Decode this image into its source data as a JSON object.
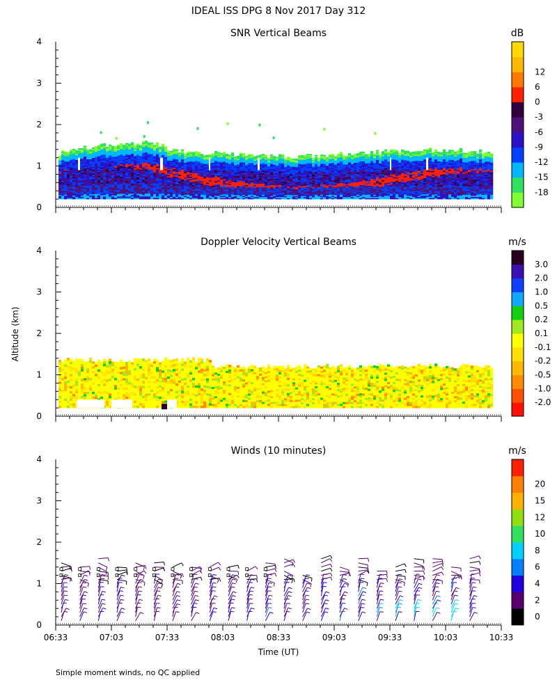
{
  "figure": {
    "title": "IDEAL ISS DPG    8 Nov 2017 Day 312",
    "ylabel": "Altitude (km)",
    "xlabel": "Time (UT)",
    "footnote": "Simple moment winds, no QC applied"
  },
  "chart_data": [
    {
      "type": "heatmap",
      "title": "SNR Vertical Beams",
      "colorbar_unit": "dB",
      "colorbar_labels": [
        "-18",
        "-15",
        "-12",
        "-9",
        "-6",
        "-3",
        "0",
        "6",
        "12"
      ],
      "colorbar_colors": [
        "#80ff30",
        "#30e060",
        "#00b8ff",
        "#0040ff",
        "#2a10c8",
        "#50107a",
        "#300040",
        "#ff2000",
        "#ff7800",
        "#ffb800",
        "#ffd800"
      ],
      "ylim": [
        0,
        4
      ],
      "yticks": [
        "0",
        "1",
        "2",
        "3",
        "4"
      ],
      "x_range": [
        "06:33",
        "10:33"
      ],
      "layers": [
        {
          "name": "weak echo top (-18 to -15 dB)",
          "alt_km": [
            0.2,
            1.6
          ]
        },
        {
          "name": "-12 dB band",
          "alt_km": [
            0.2,
            1.15
          ]
        },
        {
          "name": "-9 dB band",
          "alt_km": [
            0.25,
            1.05
          ]
        },
        {
          "name": "-6 to -3 dB core",
          "alt_km": [
            0.3,
            0.95
          ]
        },
        {
          "name": "0 dB strong layer",
          "alt_km": [
            0.4,
            1.0
          ]
        }
      ]
    },
    {
      "type": "heatmap",
      "title": "Doppler Velocity Vertical Beams",
      "colorbar_unit": "m/s",
      "colorbar_labels": [
        "-2.0",
        "-1.0",
        "-0.5",
        "-0.2",
        "-0.1",
        "0.1",
        "0.2",
        "0.5",
        "1.0",
        "2.0",
        "3.0"
      ],
      "colorbar_colors": [
        "#ff1000",
        "#ff5000",
        "#ff8c00",
        "#ffb800",
        "#ffe000",
        "#ffff00",
        "#a0e820",
        "#10d010",
        "#10a8ff",
        "#1040ff",
        "#3a10b0",
        "#280020"
      ],
      "ylim": [
        0,
        4
      ],
      "yticks": [
        "0",
        "1",
        "2",
        "3",
        "4"
      ],
      "x_range": [
        "06:33",
        "10:33"
      ],
      "dominant_range": "-0.1 to 0.1 m/s",
      "echo_top_km": 1.5
    },
    {
      "type": "scatter",
      "title": "Winds (10 minutes)",
      "colorbar_unit": "m/s",
      "colorbar_labels": [
        "0",
        "2",
        "4",
        "6",
        "8",
        "10",
        "12",
        "15",
        "20"
      ],
      "colorbar_colors": [
        "#000000",
        "#580070",
        "#2000e0",
        "#0080ff",
        "#00d0ff",
        "#30e060",
        "#90e010",
        "#ffb000",
        "#ff8000",
        "#ff2000"
      ],
      "ylim": [
        0,
        4
      ],
      "yticks": [
        "0",
        "1",
        "2",
        "3",
        "4"
      ],
      "xticks": [
        "06:33",
        "07:03",
        "07:33",
        "08:03",
        "08:33",
        "09:03",
        "09:33",
        "10:03",
        "10:33"
      ],
      "profile_times": [
        "06:36",
        "06:46",
        "06:56",
        "07:06",
        "07:16",
        "07:26",
        "07:36",
        "07:46",
        "07:56",
        "08:06",
        "08:16",
        "08:26",
        "08:36",
        "08:46",
        "08:56",
        "09:06",
        "09:16",
        "09:26",
        "09:36",
        "09:46",
        "09:56",
        "10:06",
        "10:16"
      ],
      "max_height_km": 1.7
    }
  ]
}
